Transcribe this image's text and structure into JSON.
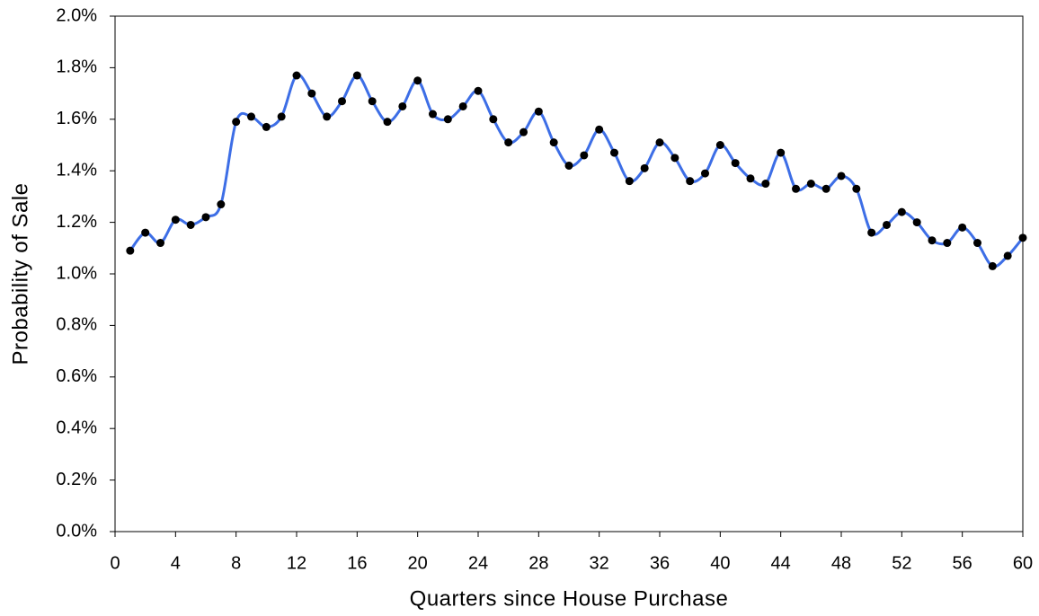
{
  "chart_data": {
    "type": "line",
    "x_label": "Quarters since House Purchase",
    "y_label": "Probability of Sale",
    "xlim": [
      0,
      60
    ],
    "xticks": [
      0,
      4,
      8,
      12,
      16,
      20,
      24,
      28,
      32,
      36,
      40,
      44,
      48,
      52,
      56,
      60
    ],
    "ylim": [
      0,
      2.0
    ],
    "yticks": [
      {
        "value": 0,
        "label": "0.0%"
      },
      {
        "value": 0.2,
        "label": "0.2%"
      },
      {
        "value": 0.4,
        "label": "0.4%"
      },
      {
        "value": 0.6,
        "label": "0.6%"
      },
      {
        "value": 0.8,
        "label": "0.8%"
      },
      {
        "value": 1.0,
        "label": "1.0%"
      },
      {
        "value": 1.2,
        "label": "1.2%"
      },
      {
        "value": 1.4,
        "label": "1.4%"
      },
      {
        "value": 1.6,
        "label": "1.6%"
      },
      {
        "value": 1.8,
        "label": "1.8%"
      },
      {
        "value": 2.0,
        "label": "2.0%"
      }
    ],
    "x": [
      1,
      2,
      3,
      4,
      5,
      6,
      7,
      8,
      9,
      10,
      11,
      12,
      13,
      14,
      15,
      16,
      17,
      18,
      19,
      20,
      21,
      22,
      23,
      24,
      25,
      26,
      27,
      28,
      29,
      30,
      31,
      32,
      33,
      34,
      35,
      36,
      37,
      38,
      39,
      40,
      41,
      42,
      43,
      44,
      45,
      46,
      47,
      48,
      49,
      50,
      51,
      52,
      53,
      54,
      55,
      56,
      57,
      58,
      59,
      60
    ],
    "series": [
      {
        "color": "#3d6ee6",
        "marker_color": "#000000",
        "values": [
          1.09,
          1.16,
          1.12,
          1.21,
          1.19,
          1.22,
          1.27,
          1.59,
          1.61,
          1.57,
          1.61,
          1.77,
          1.7,
          1.61,
          1.67,
          1.77,
          1.67,
          1.59,
          1.65,
          1.75,
          1.62,
          1.6,
          1.65,
          1.71,
          1.6,
          1.51,
          1.55,
          1.63,
          1.51,
          1.42,
          1.46,
          1.56,
          1.47,
          1.36,
          1.41,
          1.51,
          1.45,
          1.36,
          1.39,
          1.5,
          1.43,
          1.37,
          1.35,
          1.47,
          1.33,
          1.35,
          1.33,
          1.38,
          1.33,
          1.16,
          1.19,
          1.24,
          1.2,
          1.13,
          1.12,
          1.18,
          1.12,
          1.03,
          1.07,
          1.14
        ]
      }
    ]
  }
}
